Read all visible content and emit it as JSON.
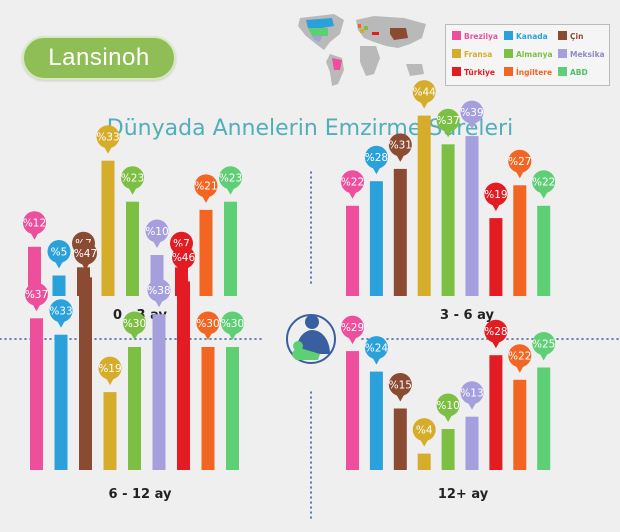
{
  "logo": {
    "text": "Lansinoh"
  },
  "title": "Dünyada Annelerin Emzirme Süreleri",
  "legend": [
    {
      "name": "Brezilya",
      "color": "#ee4f9d",
      "text_color": "#ee4f9d"
    },
    {
      "name": "Kanada",
      "color": "#2ba1db",
      "text_color": "#2ba1db"
    },
    {
      "name": "Çin",
      "color": "#8b4a32",
      "text_color": "#8b4a32"
    },
    {
      "name": "Fransa",
      "color": "#d6ad2b",
      "text_color": "#d6ad2b"
    },
    {
      "name": "Almanya",
      "color": "#7bc043",
      "text_color": "#7bc043"
    },
    {
      "name": "Meksika",
      "color": "#a59fdd",
      "text_color": "#8e88cc"
    },
    {
      "name": "Türkiye",
      "color": "#e31b23",
      "text_color": "#e31b23"
    },
    {
      "name": "İngiltere",
      "color": "#f26522",
      "text_color": "#f26522"
    },
    {
      "name": "ABD",
      "color": "#5fcf76",
      "text_color": "#4fbf66"
    }
  ],
  "chart_data": [
    {
      "type": "bar",
      "title": "0 - 3 ay",
      "categories": [
        "Brezilya",
        "Kanada",
        "Çin",
        "Fransa",
        "Almanya",
        "Meksika",
        "Türkiye",
        "İngiltere",
        "ABD"
      ],
      "values": [
        12,
        5,
        7,
        33,
        23,
        10,
        7,
        21,
        23
      ],
      "labels": [
        "%12",
        "%5",
        "%7",
        "%33",
        "%23",
        "%10",
        "%7",
        "%21",
        "%23"
      ]
    },
    {
      "type": "bar",
      "title": "3 - 6 ay",
      "categories": [
        "Brezilya",
        "Kanada",
        "Çin",
        "Fransa",
        "Almanya",
        "Meksika",
        "Türkiye",
        "İngiltere",
        "ABD"
      ],
      "values": [
        22,
        28,
        31,
        44,
        37,
        39,
        19,
        27,
        22
      ],
      "labels": [
        "%22",
        "%28",
        "%31",
        "%44",
        "%37",
        "%39",
        "%19",
        "%27",
        "%22"
      ]
    },
    {
      "type": "bar",
      "title": "6 - 12 ay",
      "categories": [
        "Brezilya",
        "Kanada",
        "Çin",
        "Fransa",
        "Almanya",
        "Meksika",
        "Türkiye",
        "İngiltere",
        "ABD"
      ],
      "values": [
        37,
        33,
        47,
        19,
        30,
        38,
        46,
        30,
        30
      ],
      "labels": [
        "%37",
        "%33",
        "%47",
        "%19",
        "%30",
        "%38",
        "%46",
        "%30",
        "%30"
      ]
    },
    {
      "type": "bar",
      "title": "12+ ay",
      "categories": [
        "Brezilya",
        "Kanada",
        "Çin",
        "Fransa",
        "Almanya",
        "Meksika",
        "Türkiye",
        "İngiltere",
        "ABD"
      ],
      "values": [
        29,
        24,
        15,
        4,
        10,
        13,
        28,
        22,
        25
      ],
      "labels": [
        "%29",
        "%24",
        "%15",
        "%4",
        "%10",
        "%13",
        "%28",
        "%22",
        "%25"
      ]
    }
  ],
  "colors": {
    "title": "#52aeb9",
    "divider": "#3a5fa0",
    "icon": "#3a5fa0",
    "logo": "#8fbe57"
  }
}
